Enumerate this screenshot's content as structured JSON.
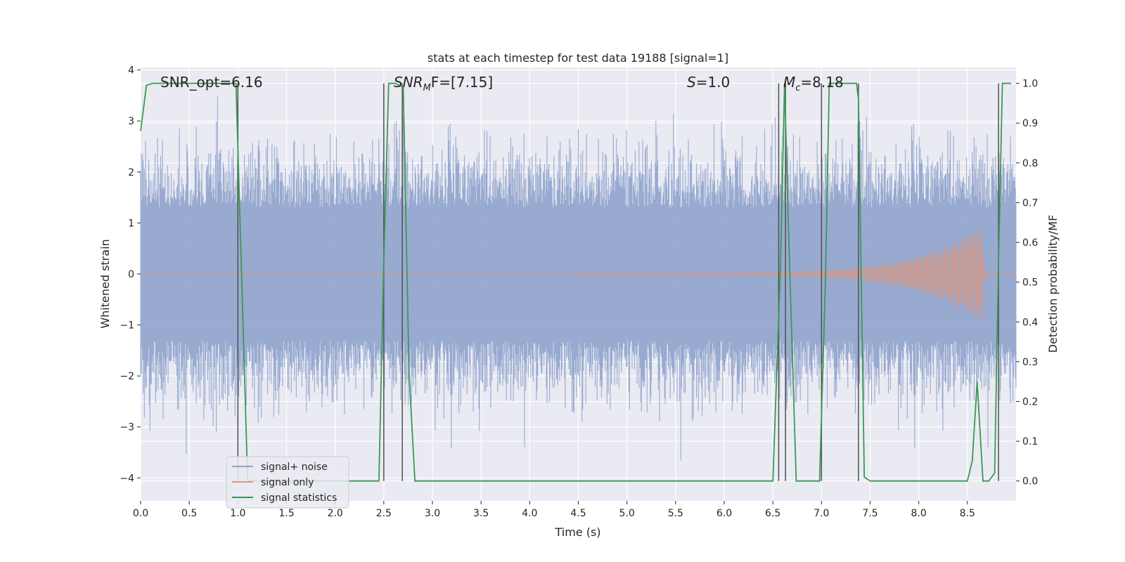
{
  "chart_data": {
    "type": "line",
    "title": "stats at each timestep for test data 19188 [signal=1]",
    "xlabel": "Time (s)",
    "ylabel": "Whitened strain",
    "ylabel_right": "Detection probability/MF",
    "xlim": [
      0.0,
      9.0
    ],
    "ylim": [
      -4.45,
      4.05
    ],
    "ylim_right": [
      -0.05,
      1.04
    ],
    "x_ticks": [
      "0.0",
      "0.5",
      "1.0",
      "1.5",
      "2.0",
      "2.5",
      "3.0",
      "3.5",
      "4.0",
      "4.5",
      "5.0",
      "5.5",
      "6.0",
      "6.5",
      "7.0",
      "7.5",
      "8.0",
      "8.5"
    ],
    "y_ticks": [
      "−4",
      "−3",
      "−2",
      "−1",
      "0",
      "1",
      "2",
      "3",
      "4"
    ],
    "y_ticks_right": [
      "0.0",
      "0.1",
      "0.2",
      "0.3",
      "0.4",
      "0.5",
      "0.6",
      "0.7",
      "0.8",
      "0.9",
      "1.0"
    ],
    "grid": true,
    "legend_position": "lower-left",
    "annotations": [
      {
        "text": "SNR_opt=6.16",
        "x": 0.2,
        "y": 3.8
      },
      {
        "text": "SNRMF=[7.15]",
        "base": "SNR",
        "sub": "M",
        "tail": "F=[7.15]",
        "x": 2.6,
        "y": 3.8
      },
      {
        "text": "S=1.0",
        "base": "S",
        "tail": "=1.0",
        "x": 5.6,
        "y": 3.8
      },
      {
        "text": "Mc=8.18",
        "base": "M",
        "sub": "c",
        "tail": "=8.18",
        "x": 6.6,
        "y": 3.8
      }
    ],
    "series": [
      {
        "name": "signal+ noise",
        "color": "#8fa3cc",
        "axis": "left",
        "description": "whitened noisy strain, amplitude mostly within about ±2.5, peaks to about ±3.8"
      },
      {
        "name": "signal only",
        "color": "#e0967a",
        "axis": "left",
        "chirp": {
          "start": 4.5,
          "merger": 8.65,
          "end": 8.75,
          "start_amp": 0.02,
          "peak_amp": 0.95
        }
      },
      {
        "name": "signal statistics",
        "color": "#3a9a52",
        "axis": "right",
        "x": [
          0.0,
          0.06,
          0.12,
          0.5,
          0.98,
          1.1,
          1.18,
          2.4,
          2.45,
          2.5,
          2.55,
          2.62,
          2.7,
          2.76,
          2.82,
          6.25,
          6.5,
          6.58,
          6.62,
          6.66,
          6.74,
          6.98,
          7.04,
          7.08,
          7.12,
          7.36,
          7.38,
          7.44,
          7.5,
          8.5,
          8.55,
          8.6,
          8.66,
          8.72,
          8.78,
          8.82,
          8.86,
          8.9,
          8.95
        ],
        "y": [
          0.88,
          0.995,
          1.0,
          1.0,
          1.0,
          0.0,
          0.0,
          0.0,
          0.0,
          0.55,
          1.0,
          1.0,
          0.99,
          0.27,
          0.0,
          0.0,
          0.0,
          0.55,
          1.0,
          0.64,
          0.0,
          0.0,
          0.5,
          1.0,
          1.0,
          1.0,
          0.96,
          0.01,
          0.0,
          0.0,
          0.05,
          0.25,
          0.0,
          0.0,
          0.02,
          0.55,
          1.0,
          1.0,
          1.0
        ]
      }
    ],
    "vertical_lines": {
      "color": "#505050",
      "x": [
        1.0,
        2.5,
        2.69,
        6.56,
        6.63,
        7.0,
        7.38,
        8.82
      ],
      "y_range": [
        0.0,
        1.0
      ]
    }
  },
  "legend": [
    {
      "label": "signal+ noise",
      "color": "#8fa3cc"
    },
    {
      "label": "signal only",
      "color": "#e0967a"
    },
    {
      "label": "signal statistics",
      "color": "#3a9a52"
    }
  ]
}
